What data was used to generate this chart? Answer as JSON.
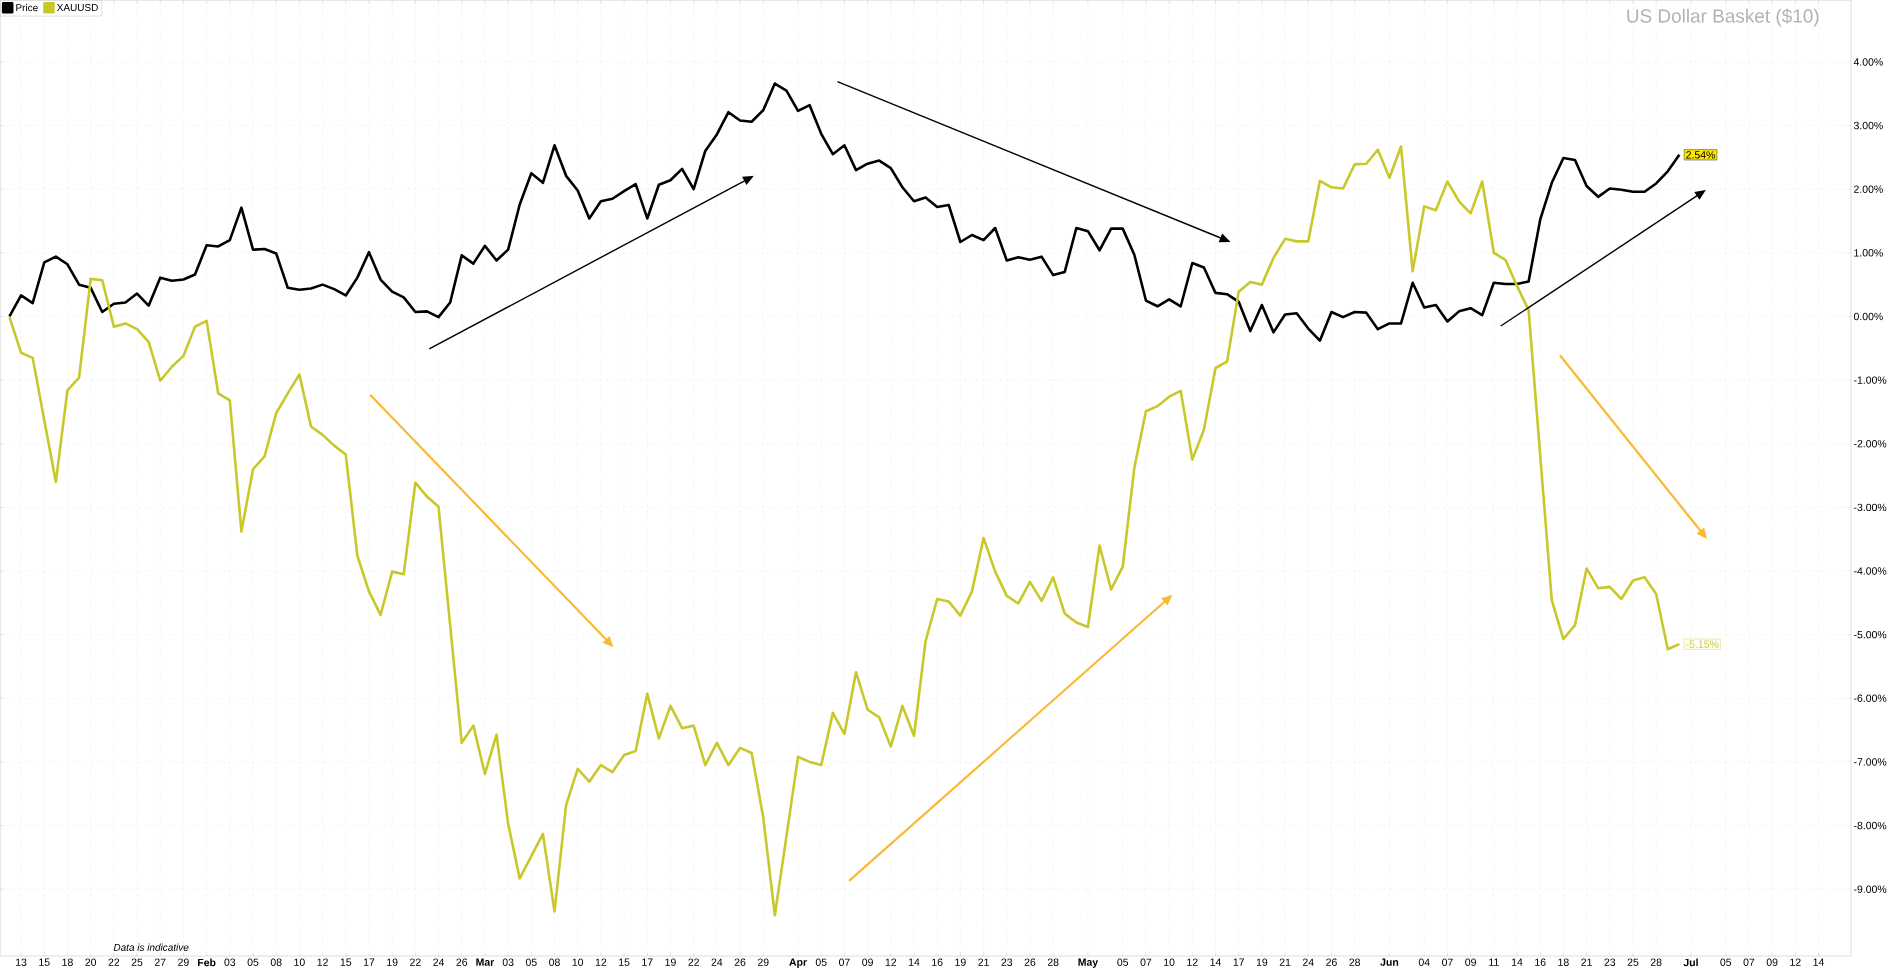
{
  "chart_data": {
    "type": "line",
    "title": "US Dollar Basket ($10)",
    "annotations": [
      "Data is indicative"
    ],
    "legend": "top left",
    "grid": true,
    "categories": [
      null,
      "13",
      null,
      "15",
      null,
      "18",
      null,
      "20",
      null,
      "22",
      null,
      "25",
      null,
      "27",
      null,
      "29",
      null,
      "**Feb**",
      null,
      "03",
      null,
      "05",
      null,
      "08",
      null,
      "10",
      null,
      "12",
      null,
      "15",
      null,
      "17",
      null,
      "19",
      null,
      "22",
      null,
      "24",
      null,
      "26",
      null,
      "**Mar**",
      null,
      "03",
      null,
      "05",
      null,
      "08",
      null,
      "10",
      null,
      "12",
      null,
      "15",
      null,
      "17",
      null,
      "19",
      null,
      "22",
      null,
      "24",
      null,
      "26",
      null,
      "29",
      null,
      null,
      "**Apr**",
      null,
      "05",
      null,
      "07",
      null,
      "09",
      null,
      "12",
      null,
      "14",
      null,
      "16",
      null,
      "19",
      null,
      "21",
      null,
      "23",
      null,
      "26",
      null,
      "28",
      null,
      null,
      "**May**",
      null,
      null,
      "05",
      null,
      "07",
      null,
      "10",
      null,
      "12",
      null,
      "14",
      null,
      "17",
      null,
      "19",
      null,
      "21",
      null,
      "24",
      null,
      "26",
      null,
      "28",
      null,
      null,
      "**Jun**",
      null,
      null,
      "04",
      null,
      "07",
      null,
      "09",
      null,
      "11",
      null,
      "14",
      null,
      "16",
      null,
      "18",
      null,
      "21",
      null,
      "23",
      null,
      "25",
      null,
      "28",
      null,
      null,
      "**Jul**",
      null,
      null,
      "05",
      null,
      "07",
      null,
      "09",
      null,
      "12",
      null,
      "14",
      null,
      null
    ],
    "ylim": [
      -10.05,
      4.97
    ],
    "yticks": [
      {
        "value": 4,
        "label": "4.00%"
      },
      {
        "value": 3,
        "label": "3.00%"
      },
      {
        "value": 2,
        "label": "2.00%"
      },
      {
        "value": 1,
        "label": "1.00%"
      },
      {
        "value": 0,
        "label": "0.00%"
      },
      {
        "value": -1,
        "label": "-1.00%"
      },
      {
        "value": -2,
        "label": "-2.00%"
      },
      {
        "value": -3,
        "label": "-3.00%"
      },
      {
        "value": -4,
        "label": "-4.00%"
      },
      {
        "value": -5,
        "label": "-5.00%"
      },
      {
        "value": -6,
        "label": "-6.00%"
      },
      {
        "value": -7,
        "label": "-7.00%"
      },
      {
        "value": -8,
        "label": "-8.00%"
      },
      {
        "value": -9,
        "label": "-9.00%"
      }
    ],
    "series": [
      {
        "name": "Price",
        "color": "#000000",
        "values": [
          0.0,
          0.33,
          0.21,
          0.85,
          0.94,
          0.82,
          0.5,
          0.45,
          0.07,
          0.2,
          0.22,
          0.36,
          0.17,
          0.61,
          0.56,
          0.58,
          0.66,
          1.12,
          1.1,
          1.2,
          1.71,
          1.05,
          1.06,
          0.99,
          0.45,
          0.42,
          0.44,
          0.5,
          0.43,
          0.33,
          0.61,
          1.01,
          0.58,
          0.39,
          0.3,
          0.07,
          0.08,
          -0.01,
          0.22,
          0.96,
          0.83,
          1.11,
          0.88,
          1.05,
          1.76,
          2.25,
          2.1,
          2.69,
          2.21,
          1.98,
          1.54,
          1.81,
          1.85,
          1.97,
          2.08,
          1.54,
          2.07,
          2.14,
          2.32,
          2.0,
          2.6,
          2.86,
          3.21,
          3.08,
          3.06,
          3.24,
          3.66,
          3.55,
          3.23,
          3.32,
          2.87,
          2.55,
          2.69,
          2.3,
          2.4,
          2.45,
          2.33,
          2.03,
          1.81,
          1.87,
          1.72,
          1.75,
          1.17,
          1.28,
          1.2,
          1.39,
          0.88,
          0.93,
          0.89,
          0.94,
          0.65,
          0.7,
          1.39,
          1.34,
          1.04,
          1.38,
          1.38,
          0.97,
          0.25,
          0.16,
          0.27,
          0.16,
          0.84,
          0.77,
          0.37,
          0.35,
          0.23,
          -0.23,
          0.18,
          -0.25,
          0.03,
          0.05,
          -0.19,
          -0.38,
          0.07,
          -0.01,
          0.07,
          0.06,
          -0.2,
          -0.11,
          -0.11,
          0.53,
          0.14,
          0.18,
          -0.08,
          0.08,
          0.13,
          0.02,
          0.53,
          0.51,
          0.51,
          0.55,
          1.52,
          2.1,
          2.49,
          2.46,
          2.05,
          1.88,
          2.01,
          1.99,
          1.96,
          1.96,
          2.09,
          2.28,
          2.54,
          null,
          null,
          null,
          null,
          null,
          null,
          null,
          null,
          null,
          null,
          null,
          null,
          null,
          null
        ],
        "value_labels": [
          null,
          null,
          null,
          null,
          null,
          null,
          null,
          null,
          null,
          null,
          null,
          null,
          null,
          null,
          null,
          null,
          null,
          null,
          null,
          null,
          null,
          null,
          null,
          null,
          null,
          null,
          null,
          null,
          null,
          null,
          null,
          null,
          null,
          null,
          null,
          null,
          null,
          null,
          null,
          null,
          null,
          null,
          null,
          null,
          null,
          null,
          null,
          null,
          null,
          null,
          null,
          null,
          null,
          null,
          null,
          null,
          null,
          null,
          null,
          null,
          null,
          null,
          null,
          null,
          null,
          null,
          null,
          null,
          null,
          null,
          null,
          null,
          null,
          null,
          null,
          null,
          null,
          null,
          null,
          null,
          null,
          null,
          null,
          null,
          null,
          null,
          null,
          null,
          null,
          null,
          null,
          null,
          null,
          null,
          null,
          null,
          null,
          null,
          null,
          null,
          null,
          null,
          null,
          null,
          null,
          null,
          null,
          null,
          null,
          null,
          null,
          null,
          null,
          null,
          null,
          null,
          null,
          null,
          null,
          null,
          null,
          null,
          null,
          null,
          null,
          null,
          null,
          null,
          null,
          null,
          null,
          null,
          null,
          null,
          null,
          null,
          null,
          null,
          null,
          null,
          null,
          null,
          null,
          null,
          "2.54%",
          null,
          null,
          null,
          null,
          null,
          null,
          null,
          null,
          null,
          null,
          null,
          null,
          null,
          null
        ]
      },
      {
        "name": "XAUUSD",
        "color": "#c9c82a",
        "values": [
          -0.01,
          -0.57,
          -0.65,
          -1.63,
          -2.6,
          -1.16,
          -0.96,
          0.59,
          0.57,
          -0.16,
          -0.11,
          -0.2,
          -0.4,
          -1.01,
          -0.79,
          -0.62,
          -0.16,
          -0.07,
          -1.21,
          -1.32,
          -3.38,
          -2.4,
          -2.2,
          -1.52,
          -1.21,
          -0.91,
          -1.73,
          -1.86,
          -2.03,
          -2.17,
          -3.76,
          -4.32,
          -4.69,
          -4.01,
          -4.05,
          -2.61,
          -2.83,
          -2.99,
          -4.85,
          -6.7,
          -6.43,
          -7.19,
          -6.57,
          -7.97,
          -8.83,
          -8.48,
          -8.13,
          -9.35,
          -7.68,
          -7.11,
          -7.31,
          -7.05,
          -7.16,
          -6.89,
          -6.83,
          -5.93,
          -6.63,
          -6.12,
          -6.47,
          -6.43,
          -7.05,
          -6.7,
          -7.05,
          -6.78,
          -6.86,
          -7.87,
          -9.41,
          -8.17,
          -6.92,
          -7.0,
          -7.05,
          -6.23,
          -6.56,
          -5.59,
          -6.18,
          -6.3,
          -6.76,
          -6.12,
          -6.59,
          -5.1,
          -4.44,
          -4.48,
          -4.7,
          -4.32,
          -3.48,
          -4.01,
          -4.39,
          -4.51,
          -4.17,
          -4.47,
          -4.1,
          -4.67,
          -4.81,
          -4.88,
          -3.6,
          -4.29,
          -3.93,
          -2.38,
          -1.49,
          -1.41,
          -1.26,
          -1.17,
          -2.25,
          -1.78,
          -0.81,
          -0.71,
          0.39,
          0.54,
          0.5,
          0.92,
          1.22,
          1.18,
          1.18,
          2.13,
          2.03,
          2.01,
          2.39,
          2.4,
          2.62,
          2.18,
          2.67,
          0.71,
          1.73,
          1.67,
          2.12,
          1.81,
          1.62,
          2.12,
          1.0,
          0.89,
          0.48,
          0.1,
          -2.18,
          -4.46,
          -5.07,
          -4.85,
          -3.96,
          -4.27,
          -4.25,
          -4.44,
          -4.15,
          -4.1,
          -4.36,
          -5.23,
          -5.15,
          null,
          null,
          null,
          null,
          null,
          null,
          null,
          null,
          null,
          null,
          null,
          null,
          null,
          null
        ],
        "value_labels": [
          null,
          null,
          null,
          null,
          null,
          null,
          null,
          null,
          null,
          null,
          null,
          null,
          null,
          null,
          null,
          null,
          null,
          null,
          null,
          null,
          null,
          null,
          null,
          null,
          null,
          null,
          null,
          null,
          null,
          null,
          null,
          null,
          null,
          null,
          null,
          null,
          null,
          null,
          null,
          null,
          null,
          null,
          null,
          null,
          null,
          null,
          null,
          null,
          null,
          null,
          null,
          null,
          null,
          null,
          null,
          null,
          null,
          null,
          null,
          null,
          null,
          null,
          null,
          null,
          null,
          null,
          null,
          null,
          null,
          null,
          null,
          null,
          null,
          null,
          null,
          null,
          null,
          null,
          null,
          null,
          null,
          null,
          null,
          null,
          null,
          null,
          null,
          null,
          null,
          null,
          null,
          null,
          null,
          null,
          null,
          null,
          null,
          null,
          null,
          null,
          null,
          null,
          null,
          null,
          null,
          null,
          null,
          null,
          null,
          null,
          null,
          null,
          null,
          null,
          null,
          null,
          null,
          null,
          null,
          null,
          null,
          null,
          null,
          null,
          null,
          null,
          null,
          null,
          null,
          null,
          null,
          null,
          null,
          null,
          null,
          null,
          null,
          null,
          null,
          null,
          null,
          null,
          null,
          null,
          "-5.15%",
          null,
          null,
          null,
          null,
          null,
          null,
          null,
          null,
          null,
          null,
          null,
          null,
          null,
          null
        ]
      }
    ]
  }
}
